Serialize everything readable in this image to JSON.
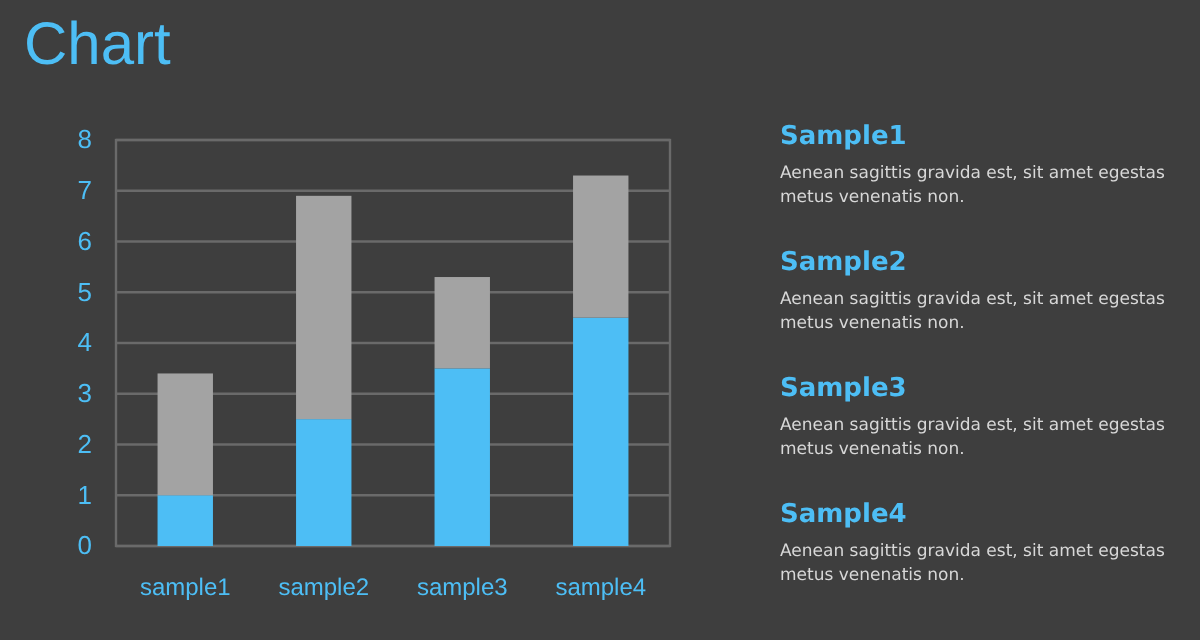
{
  "chart_data": {
    "type": "bar",
    "title": "Chart",
    "stacked": true,
    "categories": [
      "sample1",
      "sample2",
      "sample3",
      "sample4"
    ],
    "series": [
      {
        "color": "#4dbef5",
        "values": [
          1,
          2.5,
          3.5,
          4.5
        ]
      },
      {
        "color": "#a3a3a3",
        "values": [
          2.4,
          4.4,
          1.8,
          2.8
        ]
      }
    ],
    "ylim": [
      0,
      8
    ],
    "yticks": [
      0,
      1,
      2,
      3,
      4,
      5,
      6,
      7,
      8
    ],
    "grid": "y",
    "annotations": [
      "Sample1",
      "Aenean sagittis gravida est, sit amet egestas metus venenatis non.",
      "Sample2",
      "Aenean sagittis gravida est, sit amet egestas metus venenatis non.",
      "Sample3",
      "Aenean sagittis gravida est, sit amet egestas metus venenatis non.",
      "Sample4",
      "Aenean sagittis gravida est, sit amet egestas metus venenatis non."
    ]
  }
}
